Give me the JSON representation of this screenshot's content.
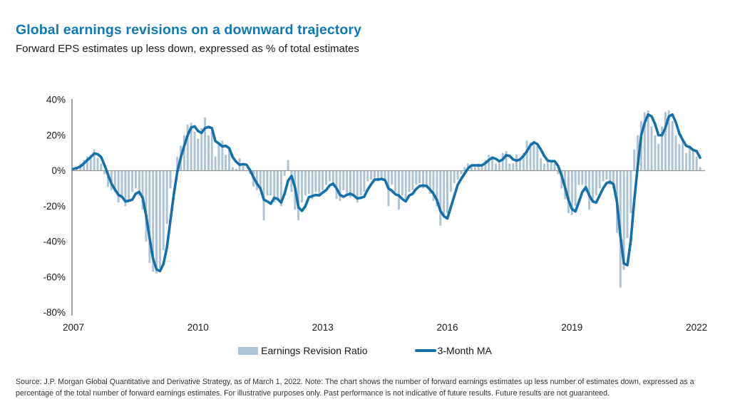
{
  "header": {
    "title": "Global earnings revisions on a downward trajectory",
    "subtitle": "Forward EPS estimates up less down, expressed as % of total estimates"
  },
  "legend": {
    "bar_label": "Earnings Revision Ratio",
    "line_label": "3-Month MA"
  },
  "footer": {
    "source": "Source: J.P. Morgan Global Quantitative and Derivative Strategy, as of March 1, 2022. Note: The chart shows the number of forward earnings estimates up less number of estimates down, expressed as a percentage of the total number of forward earnings estimates. For illustrative purposes only. Past performance is not indicative of future results. Future results are not guaranteed."
  },
  "colors": {
    "title_blue": "#0e79b6",
    "bar_fill": "#aec4d6",
    "line_blue": "#1470a9",
    "zero_line": "#999999",
    "axis_line": "#808080",
    "tick_text": "#1a1a1a"
  },
  "chart_data": {
    "type": "bar",
    "title": "Global earnings revisions on a downward trajectory",
    "subtitle": "Forward EPS estimates up less down, expressed as % of total estimates",
    "frequency": "monthly",
    "x_start": "2007-01",
    "x_end": "2022-02",
    "xlabel": "",
    "ylabel": "",
    "ylim": [
      -80,
      40
    ],
    "grid": "zero-line only",
    "legend_position": "bottom-center",
    "y_ticks": [
      "40%",
      "20%",
      "0%",
      "-20%",
      "-40%",
      "-60%",
      "-80%"
    ],
    "y_tick_values": [
      40,
      20,
      0,
      -20,
      -40,
      -60,
      -80
    ],
    "x_ticks": [
      "2007",
      "2010",
      "2013",
      "2016",
      "2019",
      "2022"
    ],
    "x_tick_month_index": [
      0,
      36,
      72,
      108,
      144,
      180
    ],
    "series": [
      {
        "name": "Earnings Revision Ratio",
        "type": "bar",
        "unit": "%",
        "values": [
          1,
          2,
          4,
          6,
          8,
          9,
          12,
          7,
          4,
          -2,
          -9,
          -11,
          -12,
          -18,
          -14,
          -20,
          -17,
          -12,
          -10,
          -14,
          -22,
          -40,
          -52,
          -57,
          -58,
          -55,
          -45,
          -30,
          -10,
          0,
          8,
          14,
          20,
          26,
          27,
          22,
          18,
          24,
          30,
          20,
          22,
          8,
          16,
          17,
          9,
          12,
          2,
          1,
          7,
          3,
          0,
          -2,
          -9,
          -11,
          -10,
          -28,
          -14,
          -14,
          -18,
          -16,
          -20,
          -3,
          6,
          -12,
          -22,
          -28,
          -18,
          -14,
          -13,
          -16,
          -12,
          -14,
          -11,
          -8,
          -6,
          -8,
          -16,
          -17,
          -11,
          -13,
          -15,
          -14,
          -18,
          -14,
          -12,
          -6,
          -5,
          -4,
          -6,
          -4,
          -6,
          -20,
          -8,
          -12,
          -22,
          -14,
          -16,
          -12,
          -11,
          -8,
          -7,
          -10,
          -9,
          -13,
          -17,
          -20,
          -31,
          -26,
          -24,
          -12,
          -7,
          -5,
          -2,
          2,
          4,
          3,
          2,
          4,
          3,
          6,
          9,
          7,
          4,
          5,
          10,
          11,
          4,
          4,
          9,
          6,
          10,
          17,
          16,
          15,
          14,
          7,
          4,
          6,
          6,
          4,
          -2,
          -10,
          -16,
          -24,
          -25,
          -20,
          -8,
          -8,
          -12,
          -22,
          -18,
          -14,
          -10,
          -6,
          -5,
          -8,
          -10,
          -35,
          -66,
          -56,
          -38,
          -24,
          12,
          20,
          28,
          33,
          34,
          25,
          20,
          15,
          25,
          33,
          34,
          28,
          20,
          15,
          17,
          10,
          13,
          12,
          8,
          2
        ]
      },
      {
        "name": "3-Month MA",
        "type": "line",
        "unit": "%",
        "derived": "trailing 3-month moving average of Earnings Revision Ratio",
        "ma_window": 3
      }
    ]
  }
}
